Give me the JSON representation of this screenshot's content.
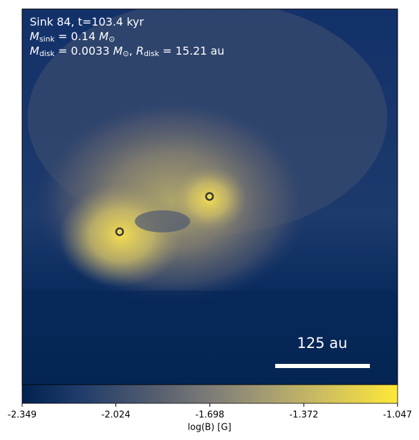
{
  "chart_data": {
    "type": "field-map",
    "annotations": [
      [
        {
          "text": "Sink 84, t=103.4 kyr"
        }
      ],
      [
        {
          "text": "M",
          "italic": true
        },
        {
          "text": "sink",
          "sub": true
        },
        {
          "text": " = 0.14 "
        },
        {
          "text": "M",
          "italic": true
        },
        {
          "text": "⊙",
          "sub": true
        }
      ],
      [
        {
          "text": "M",
          "italic": true
        },
        {
          "text": "disk",
          "sub": true
        },
        {
          "text": " = 0.0033 "
        },
        {
          "text": "M",
          "italic": true
        },
        {
          "text": "⊙",
          "sub": true
        },
        {
          "text": ", "
        },
        {
          "text": "R",
          "italic": true
        },
        {
          "text": "disk",
          "sub": true
        },
        {
          "text": " = 15.21 au"
        }
      ]
    ],
    "scale_bar_label": "125 au",
    "colorbar": {
      "label": "log(B) [G]",
      "lim": [
        -2.349,
        -1.047
      ],
      "ticks": [
        -2.349,
        -2.024,
        -1.698,
        -1.372,
        -1.047
      ],
      "colormap": [
        "#00224e",
        "#233e6c",
        "#4f5a6e",
        "#7c7b78",
        "#a9a071",
        "#d6c55a",
        "#fee838"
      ]
    }
  }
}
